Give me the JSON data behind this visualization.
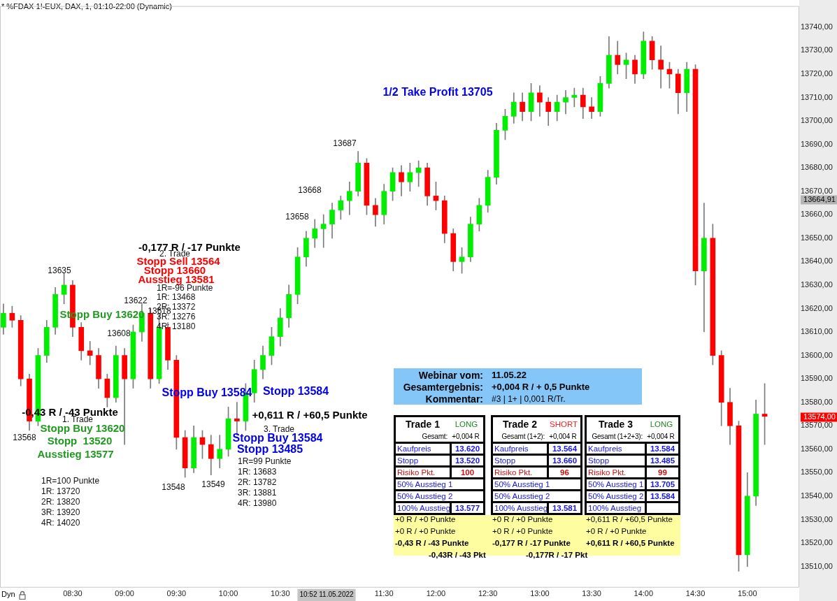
{
  "chart_data": {
    "type": "candlestick",
    "title": "* %FDAX 1!-EUX, DAX, 1, 01:10-22:00 (Dynamic)",
    "x": [
      7.833,
      7.917,
      8,
      8.083,
      8.167,
      8.25,
      8.333,
      8.417,
      8.5,
      8.583,
      8.667,
      8.75,
      8.833,
      8.917,
      9,
      9.083,
      9.167,
      9.25,
      9.333,
      9.417,
      9.5,
      9.583,
      9.667,
      9.75,
      9.833,
      9.917,
      10,
      10.083,
      10.167,
      10.25,
      10.333,
      10.417,
      10.5,
      10.583,
      10.667,
      10.75,
      10.833,
      10.917,
      11,
      11.083,
      11.167,
      11.25,
      11.333,
      11.417,
      11.5,
      11.583,
      11.667,
      11.75,
      11.833,
      11.917,
      12,
      12.083,
      12.167,
      12.25,
      12.333,
      12.417,
      12.5,
      12.583,
      12.667,
      12.75,
      12.833,
      12.917,
      13,
      13.083,
      13.167,
      13.25,
      13.333,
      13.417,
      13.5,
      13.583,
      13.667,
      13.75,
      13.833,
      13.917,
      14,
      14.083,
      14.167,
      14.25,
      14.333,
      14.417,
      14.5,
      14.583,
      14.667,
      14.75,
      14.833,
      14.917,
      15,
      15.083,
      15.167
    ],
    "ohlc": [
      [
        13612,
        13622,
        13609,
        13618
      ],
      [
        13618,
        13621,
        13612,
        13615
      ],
      [
        13615,
        13617,
        13587,
        13590
      ],
      [
        13590,
        13592,
        13568,
        13572
      ],
      [
        13572,
        13603,
        13570,
        13600
      ],
      [
        13600,
        13615,
        13597,
        13612
      ],
      [
        13612,
        13629,
        13609,
        13626
      ],
      [
        13626,
        13635,
        13622,
        13630
      ],
      [
        13630,
        13632,
        13608,
        13612
      ],
      [
        13612,
        13614,
        13598,
        13602
      ],
      [
        13602,
        13606,
        13596,
        13600
      ],
      [
        13600,
        13603,
        13586,
        13590
      ],
      [
        13590,
        13592,
        13578,
        13582
      ],
      [
        13582,
        13604,
        13580,
        13600
      ],
      [
        13600,
        13603,
        13562,
        13590
      ],
      [
        13590,
        13613,
        13586,
        13610
      ],
      [
        13610,
        13622,
        13606,
        13618
      ],
      [
        13618,
        13620,
        13586,
        13590
      ],
      [
        13590,
        13618,
        13588,
        13612
      ],
      [
        13612,
        13614,
        13594,
        13598
      ],
      [
        13598,
        13600,
        13560,
        13565
      ],
      [
        13565,
        13568,
        13548,
        13552
      ],
      [
        13552,
        13570,
        13550,
        13565
      ],
      [
        13565,
        13568,
        13556,
        13562
      ],
      [
        13562,
        13566,
        13549,
        13556
      ],
      [
        13556,
        13566,
        13552,
        13560
      ],
      [
        13560,
        13578,
        13557,
        13573
      ],
      [
        13573,
        13580,
        13566,
        13572
      ],
      [
        13572,
        13588,
        13568,
        13584
      ],
      [
        13584,
        13598,
        13580,
        13594
      ],
      [
        13594,
        13604,
        13590,
        13600
      ],
      [
        13600,
        13612,
        13596,
        13608
      ],
      [
        13608,
        13620,
        13604,
        13616
      ],
      [
        13616,
        13630,
        13612,
        13626
      ],
      [
        13626,
        13646,
        13622,
        13642
      ],
      [
        13642,
        13653,
        13638,
        13650
      ],
      [
        13650,
        13658,
        13646,
        13654
      ],
      [
        13654,
        13660,
        13646,
        13656
      ],
      [
        13656,
        13665,
        13650,
        13662
      ],
      [
        13662,
        13668,
        13658,
        13666
      ],
      [
        13666,
        13674,
        13660,
        13670
      ],
      [
        13670,
        13687,
        13668,
        13682
      ],
      [
        13682,
        13684,
        13660,
        13664
      ],
      [
        13664,
        13667,
        13655,
        13660
      ],
      [
        13660,
        13673,
        13656,
        13670
      ],
      [
        13670,
        13680,
        13666,
        13678
      ],
      [
        13678,
        13681,
        13668,
        13674
      ],
      [
        13674,
        13682,
        13670,
        13678
      ],
      [
        13678,
        13683,
        13672,
        13680
      ],
      [
        13680,
        13682,
        13664,
        13668
      ],
      [
        13668,
        13674,
        13662,
        13666
      ],
      [
        13666,
        13668,
        13648,
        13652
      ],
      [
        13652,
        13654,
        13636,
        13640
      ],
      [
        13640,
        13646,
        13635,
        13642
      ],
      [
        13642,
        13659,
        13640,
        13656
      ],
      [
        13656,
        13667,
        13653,
        13664
      ],
      [
        13664,
        13679,
        13661,
        13676
      ],
      [
        13676,
        13699,
        13673,
        13696
      ],
      [
        13696,
        13705,
        13692,
        13702
      ],
      [
        13702,
        13712,
        13699,
        13708
      ],
      [
        13708,
        13712,
        13700,
        13704
      ],
      [
        13704,
        13716,
        13700,
        13712
      ],
      [
        13712,
        13715,
        13702,
        13708
      ],
      [
        13708,
        13710,
        13698,
        13704
      ],
      [
        13704,
        13711,
        13700,
        13708
      ],
      [
        13708,
        13713,
        13703,
        13710
      ],
      [
        13710,
        13714,
        13706,
        13711
      ],
      [
        13711,
        13714,
        13701,
        13706
      ],
      [
        13706,
        13710,
        13701,
        13704
      ],
      [
        13704,
        13719,
        13702,
        13716
      ],
      [
        13716,
        13736,
        13714,
        13728
      ],
      [
        13728,
        13734,
        13720,
        13724
      ],
      [
        13724,
        13729,
        13718,
        13726
      ],
      [
        13726,
        13728,
        13716,
        13720
      ],
      [
        13720,
        13738,
        13718,
        13734
      ],
      [
        13734,
        13736,
        13722,
        13726
      ],
      [
        13726,
        13732,
        13714,
        13722
      ],
      [
        13722,
        13725,
        13714,
        13720
      ],
      [
        13720,
        13722,
        13703,
        13712
      ],
      [
        13712,
        13725,
        13704,
        13722
      ],
      [
        13722,
        13724,
        13630,
        13636
      ],
      [
        13636,
        13665,
        13610,
        13650
      ],
      [
        13650,
        13656,
        13596,
        13600
      ],
      [
        13600,
        13602,
        13570,
        13580
      ],
      [
        13580,
        13586,
        13562,
        13570
      ],
      [
        13570,
        13572,
        13508,
        13515
      ],
      [
        13515,
        13550,
        13510,
        13540
      ],
      [
        13540,
        13581,
        13536,
        13575
      ],
      [
        13575,
        13588,
        13562,
        13574
      ]
    ],
    "colors": [
      "#00ee00",
      "#ff0000",
      "#ff0000",
      "#ff0000",
      "#00ee00",
      "#00ee00",
      "#00ee00",
      "#00ee00",
      "#ff0000",
      "#ff0000",
      "#ff0000",
      "#ff0000",
      "#ff0000",
      "#00ee00",
      "#ff0000",
      "#00ee00",
      "#00ee00",
      "#ff0000",
      "#00ee00",
      "#ff0000",
      "#ff0000",
      "#ff0000",
      "#00ee00",
      "#ff0000",
      "#ff0000",
      "#00ee00",
      "#00ee00",
      "#ff0000",
      "#00ee00",
      "#00ee00",
      "#00ee00",
      "#00ee00",
      "#00ee00",
      "#00ee00",
      "#00ee00",
      "#00ee00",
      "#00ee00",
      "#00ee00",
      "#00ee00",
      "#00ee00",
      "#00ee00",
      "#00ee00",
      "#ff0000",
      "#ff0000",
      "#00ee00",
      "#00ee00",
      "#ff0000",
      "#00ee00",
      "#00ee00",
      "#ff0000",
      "#ff0000",
      "#ff0000",
      "#ff0000",
      "#00ee00",
      "#00ee00",
      "#00ee00",
      "#00ee00",
      "#00ee00",
      "#00ee00",
      "#00ee00",
      "#ff0000",
      "#00ee00",
      "#ff0000",
      "#ff0000",
      "#00ee00",
      "#00ee00",
      "#00ee00",
      "#ff0000",
      "#ff0000",
      "#00ee00",
      "#00ee00",
      "#ff0000",
      "#00ee00",
      "#ff0000",
      "#00ee00",
      "#ff0000",
      "#ff0000",
      "#ff0000",
      "#ff0000",
      "#00ee00",
      "#ff0000",
      "#00ee00",
      "#ff0000",
      "#ff0000",
      "#ff0000",
      "#ff0000",
      "#00ee00",
      "#00ee00",
      "#ff0000"
    ],
    "xlim": [
      7.8,
      15.5
    ],
    "xticks": [
      {
        "value": 8.5,
        "label": "08:30"
      },
      {
        "value": 9,
        "label": "09:00"
      },
      {
        "value": 9.5,
        "label": "09:30"
      },
      {
        "value": 10,
        "label": "10:00"
      },
      {
        "value": 10.5,
        "label": "10:30"
      },
      {
        "value": 11.5,
        "label": "11:30"
      },
      {
        "value": 12,
        "label": "12:00"
      },
      {
        "value": 12.5,
        "label": "12:30"
      },
      {
        "value": 13,
        "label": "13:00"
      },
      {
        "value": 13.5,
        "label": "13:30"
      },
      {
        "value": 14,
        "label": "14:00"
      },
      {
        "value": 14.5,
        "label": "14:30"
      },
      {
        "value": 15,
        "label": "15:00"
      }
    ],
    "ylim": [
      13501,
      13749
    ],
    "yticks": [
      {
        "value": 13510,
        "label": "13510,00"
      },
      {
        "value": 13520,
        "label": "13520,00"
      },
      {
        "value": 13530,
        "label": "13530,00"
      },
      {
        "value": 13540,
        "label": "13540,00"
      },
      {
        "value": 13550,
        "label": "13550,00"
      },
      {
        "value": 13560,
        "label": "13560,00"
      },
      {
        "value": 13570,
        "label": "13570,00"
      },
      {
        "value": 13580,
        "label": "13580,00"
      },
      {
        "value": 13590,
        "label": "13590,00"
      },
      {
        "value": 13600,
        "label": "13600,00"
      },
      {
        "value": 13610,
        "label": "13610,00"
      },
      {
        "value": 13620,
        "label": "13620,00"
      },
      {
        "value": 13630,
        "label": "13630,00"
      },
      {
        "value": 13640,
        "label": "13640,00"
      },
      {
        "value": 13650,
        "label": "13650,00"
      },
      {
        "value": 13660,
        "label": "13660,00"
      },
      {
        "value": 13670,
        "label": "13670,00"
      },
      {
        "value": 13680,
        "label": "13680,00"
      },
      {
        "value": 13690,
        "label": "13690,00"
      },
      {
        "value": 13700,
        "label": "13700,00"
      },
      {
        "value": 13710,
        "label": "13710,00"
      },
      {
        "value": 13720,
        "label": "13720,00"
      },
      {
        "value": 13730,
        "label": "13730,00"
      },
      {
        "value": 13740,
        "label": "13740,00"
      }
    ],
    "annotations": [
      "13635",
      "13622",
      "13618",
      "13608",
      "Stopp Buy 13620",
      "-0,177 R / -17 Punkte",
      "2. Trade",
      "Stopp Sell 13564",
      "Stopp 13660",
      "Ausstieg 13581",
      "1R=-96 Punkte",
      "1R: 13468",
      "2R: 13372",
      "3R: 13276",
      "4R: 13180",
      "-0,43 R / -43 Punkte",
      "1. Trade",
      "Stopp Buy 13620",
      "Stopp  13520",
      "Ausstieg 13577",
      "13568",
      "1R=100 Punkte",
      "1R: 13720",
      "2R: 13820",
      "3R: 13920",
      "4R: 14020",
      "13548",
      "13549",
      "Stopp Buy 13584",
      "Stopp 13584",
      "+0,611 R / +60,5 Punkte",
      "3. Trade",
      "Stopp Buy 13584",
      "Stopp 13485",
      "1R=99 Punkte",
      "1R: 13683",
      "2R: 13782",
      "3R: 13881",
      "4R: 13980",
      "13658",
      "13668",
      "13687",
      "1/2 Take Profit 13705",
      "13664,91",
      "13574,00",
      "10:52 11.05.2022",
      "Dyn",
      "Webinar vom:",
      "11.05.22",
      "Gesamtergebnis:",
      "+0,004 R / + 0,5 Punkte",
      "Kommentar:",
      "#3 | 1+  | 0,001 R/Tr.",
      "Trade 1",
      "LONG",
      "Gesamt:",
      "+0,004 R",
      "Kaufpreis",
      "13.620",
      "Stopp",
      "13.520",
      "Risiko Pkt.",
      "100",
      "50% Ausstieg 1",
      "50% Ausstieg 2",
      "100% Ausstieg",
      "13.577",
      "+0 R / +0 Punkte",
      "+0 R / +0 Punkte",
      "-0,43 R / -43 Punkte",
      "-0,43R / -43 Pkt",
      "Trade 2",
      "SHORT",
      "Gesamt (1+2):",
      "+0,004 R",
      "Kaufpreis",
      "13.564",
      "Stopp",
      "13.660",
      "Risiko Pkt.",
      "96",
      "50% Ausstieg 1",
      "50% Ausstieg 2",
      "100% Ausstieg",
      "13.581",
      "+0 R / +0 Punkte",
      "+0 R / +0 Punkte",
      "-0,177 R / -17 Punkte",
      "-0,177R / -17 Pkt",
      "Trade 3",
      "LONG",
      "Gesamt (1+2+3):",
      "+0,004 R",
      "Kaufpreis",
      "13.584",
      "Stopp",
      "13.485",
      "Risiko Pkt.",
      "99",
      "50% Ausstieg 1",
      "13.705",
      "50% Ausstieg 2",
      "13.584",
      "100% Ausstieg",
      "+0,611 R / +60,5 Punkte",
      "+0 R / +0 Punkte",
      "+0,611 R / +60,5 Punkte"
    ]
  }
}
